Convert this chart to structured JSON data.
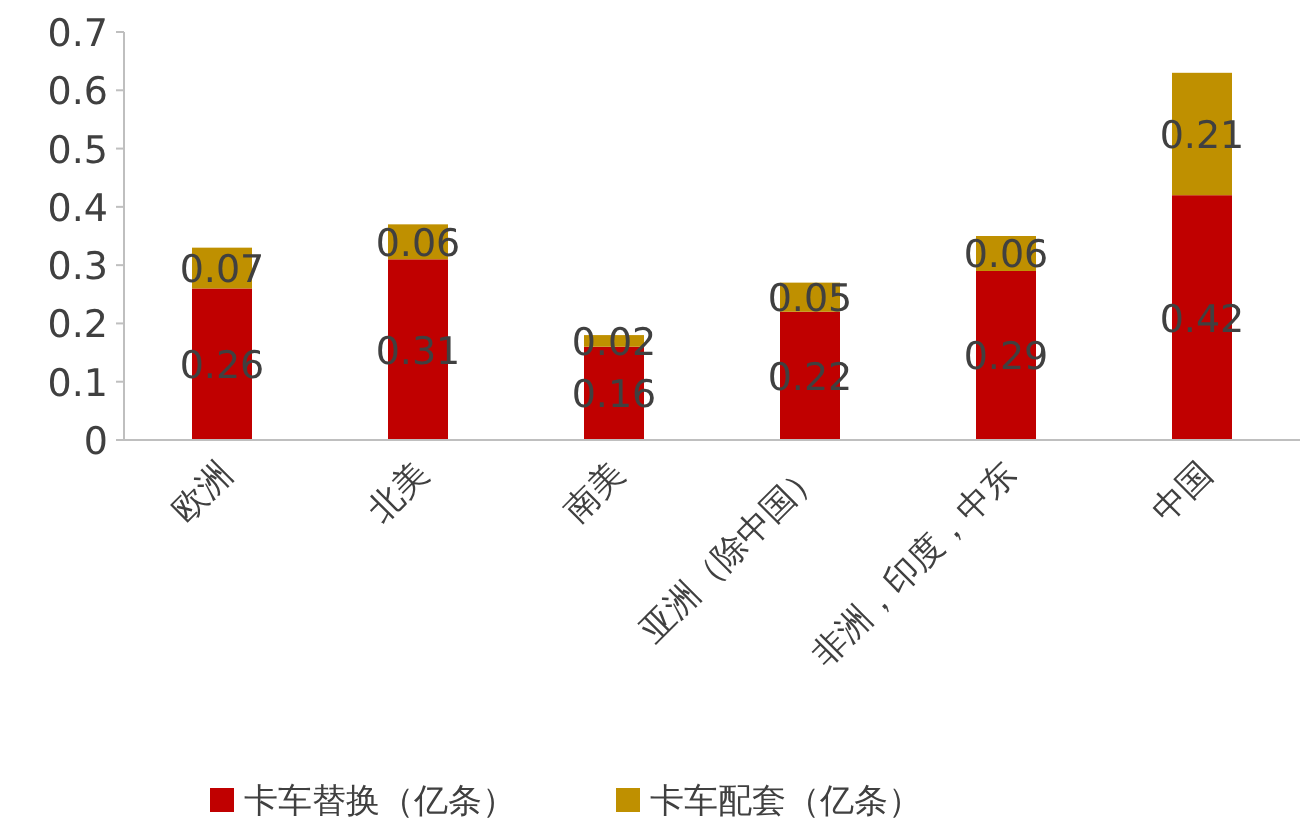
{
  "chart_data": {
    "type": "bar",
    "stacked": true,
    "categories": [
      "欧洲",
      "北美",
      "南美",
      "亚洲（除中国）",
      "非洲，印度，中东",
      "中国"
    ],
    "series": [
      {
        "name": "卡车替换（亿条）",
        "color": "#c00000",
        "values": [
          0.26,
          0.31,
          0.16,
          0.22,
          0.29,
          0.42
        ]
      },
      {
        "name": "卡车配套（亿条）",
        "color": "#bf9000",
        "values": [
          0.07,
          0.06,
          0.02,
          0.05,
          0.06,
          0.21
        ]
      }
    ],
    "ylim": [
      0,
      0.7
    ],
    "yticks": [
      0,
      0.1,
      0.2,
      0.3,
      0.4,
      0.5,
      0.6,
      0.7
    ],
    "data_labels": true,
    "legend": "bottom",
    "grid": false
  }
}
